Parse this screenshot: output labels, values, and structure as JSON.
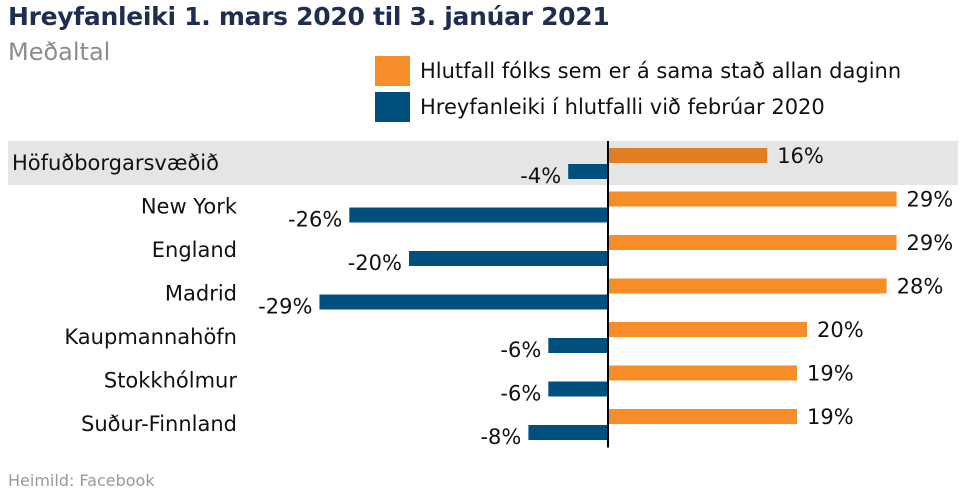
{
  "header": {
    "title": "Hreyfanleiki 1. mars 2020 til 3. janúar 2021",
    "subtitle": "Meðaltal"
  },
  "footer": {
    "source": "Heimild: Facebook"
  },
  "colors": {
    "orange": "#f78d29",
    "orange_highlight": "#e07f21",
    "blue": "#00507f",
    "highlight_band": "#e5e5e5",
    "axis": "#000000"
  },
  "chart_data": {
    "type": "bar",
    "orientation": "horizontal",
    "title": "Hreyfanleiki 1. mars 2020 til 3. janúar 2021",
    "subtitle": "Meðaltal",
    "categories": [
      "Höfuðborgarsvæðið",
      "New York",
      "England",
      "Madrid",
      "Kaupmannahöfn",
      "Stokkhólmur",
      "Suður-Finnland"
    ],
    "highlighted_category": "Höfuðborgarsvæðið",
    "series": [
      {
        "name": "Hlutfall fólks sem er á sama stað allan daginn",
        "color": "#f78d29",
        "values": [
          16,
          29,
          29,
          28,
          20,
          19,
          19
        ]
      },
      {
        "name": "Hreyfanleiki í hlutfalli við febrúar 2020",
        "color": "#00507f",
        "values": [
          -4,
          -26,
          -20,
          -29,
          -6,
          -6,
          -8
        ]
      }
    ],
    "value_format": "percent",
    "xlim": [
      -30,
      30
    ],
    "grid": false,
    "legend": "top-right",
    "xlabel": "",
    "ylabel": ""
  }
}
